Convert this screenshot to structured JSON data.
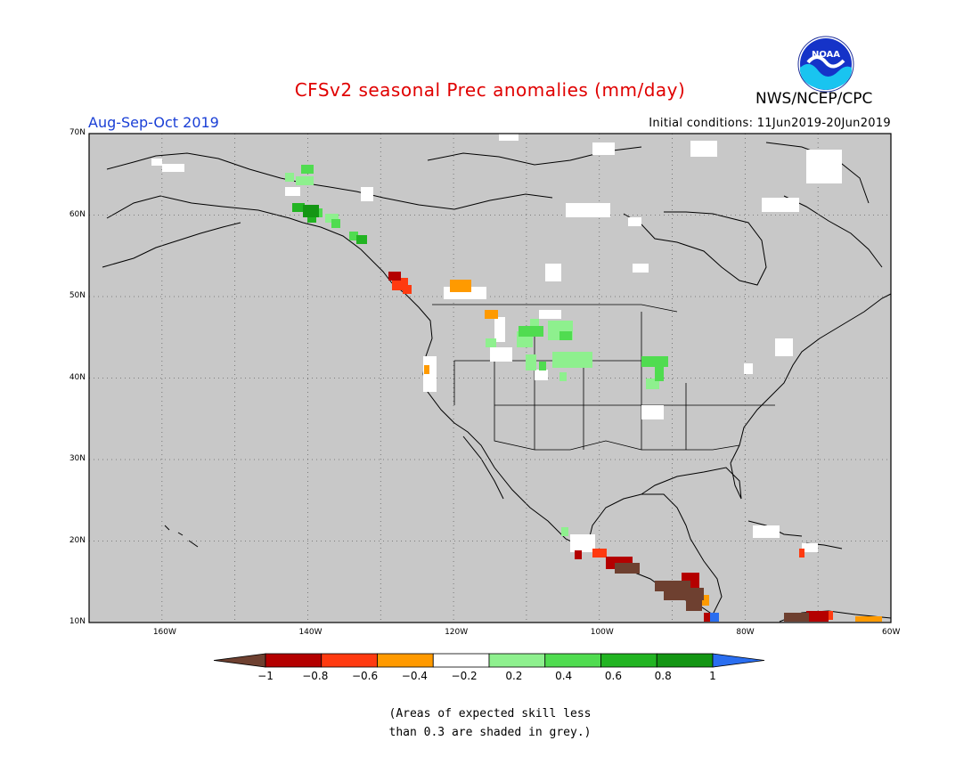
{
  "title": "CFSv2 seasonal Prec anomalies (mm/day)",
  "season": "Aug-Sep-Oct 2019",
  "initial_conditions": "Initial conditions: 11Jun2019-20Jun2019",
  "agency": "NWS/NCEP/CPC",
  "logo_text": "NOAA",
  "footnote_line1": "(Areas of expected skill less",
  "footnote_line2": "than 0.3 are shaded in grey.)",
  "colors": {
    "title": "#e00000",
    "season": "#1a3fd6",
    "land_sea_mask": "#c8c8c8",
    "neutral": "#ffffff"
  },
  "map_extent": {
    "lon_min": -170,
    "lon_max": -60,
    "lat_min": 10,
    "lat_max": 70
  },
  "lat_labels": [
    "70N",
    "60N",
    "50N",
    "40N",
    "30N",
    "20N",
    "10N"
  ],
  "lon_labels": [
    "160W",
    "140W",
    "120W",
    "100W",
    "80W",
    "60W"
  ],
  "colorbar": {
    "labels": [
      "-1",
      "-0.8",
      "-0.6",
      "-0.4",
      "-0.2",
      "0.2",
      "0.4",
      "0.6",
      "0.8",
      "1"
    ],
    "colors": [
      "#6e4030",
      "#b40000",
      "#ff3a10",
      "#ff9a00",
      "#ffffff",
      "#8ef08e",
      "#50dc50",
      "#22b422",
      "#149614",
      "#2a6ef0"
    ]
  }
}
